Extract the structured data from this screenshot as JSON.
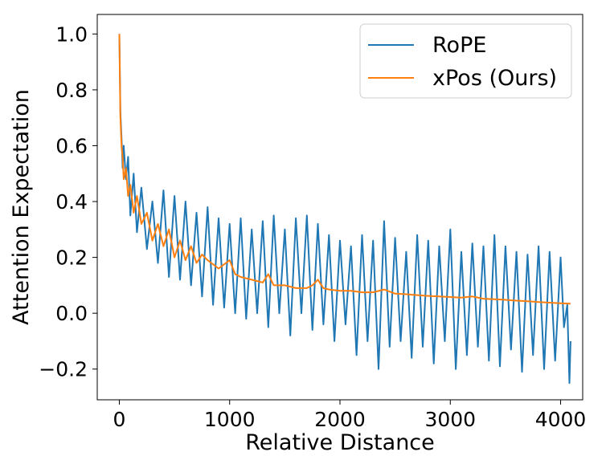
{
  "chart_data": {
    "type": "line",
    "title": "",
    "xlabel": "Relative Distance",
    "ylabel": "Attention Expectation",
    "xlim": [
      -200,
      4200
    ],
    "ylim": [
      -0.31,
      1.07
    ],
    "xticks": [
      0,
      1000,
      2000,
      3000,
      4000
    ],
    "xtick_labels": [
      "0",
      "1000",
      "2000",
      "3000",
      "4000"
    ],
    "yticks": [
      -0.2,
      0.0,
      0.2,
      0.4,
      0.6,
      0.8,
      1.0
    ],
    "ytick_labels": [
      "−0.2",
      "0.0",
      "0.2",
      "0.4",
      "0.6",
      "0.8",
      "1.0"
    ],
    "grid": false,
    "legend_position": "top-right",
    "series": [
      {
        "name": "RoPE",
        "color": "#1f77b4",
        "x": [
          0,
          10,
          20,
          30,
          40,
          60,
          80,
          100,
          130,
          160,
          200,
          250,
          300,
          350,
          400,
          450,
          500,
          550,
          600,
          650,
          700,
          750,
          800,
          850,
          900,
          950,
          1000,
          1050,
          1100,
          1150,
          1200,
          1250,
          1300,
          1350,
          1400,
          1450,
          1500,
          1550,
          1600,
          1650,
          1700,
          1750,
          1800,
          1850,
          1900,
          1950,
          2000,
          2050,
          2100,
          2150,
          2200,
          2250,
          2300,
          2350,
          2400,
          2450,
          2500,
          2550,
          2600,
          2650,
          2700,
          2750,
          2800,
          2850,
          2900,
          2950,
          3000,
          3050,
          3100,
          3150,
          3200,
          3250,
          3300,
          3350,
          3400,
          3450,
          3500,
          3550,
          3600,
          3650,
          3700,
          3750,
          3800,
          3850,
          3900,
          3950,
          4000,
          4030,
          4060,
          4080,
          4090
        ],
        "y": [
          1.0,
          0.72,
          0.63,
          0.52,
          0.6,
          0.48,
          0.56,
          0.35,
          0.5,
          0.29,
          0.45,
          0.23,
          0.4,
          0.18,
          0.44,
          0.13,
          0.42,
          0.12,
          0.4,
          0.1,
          0.36,
          0.06,
          0.38,
          0.03,
          0.34,
          0.02,
          0.32,
          0.0,
          0.34,
          -0.02,
          0.3,
          0.0,
          0.33,
          -0.05,
          0.35,
          0.0,
          0.3,
          -0.08,
          0.34,
          0.0,
          0.35,
          -0.06,
          0.32,
          -0.04,
          0.28,
          -0.1,
          0.26,
          -0.04,
          0.24,
          -0.15,
          0.28,
          -0.1,
          0.26,
          -0.2,
          0.33,
          -0.12,
          0.27,
          -0.1,
          0.22,
          -0.16,
          0.28,
          -0.12,
          0.26,
          -0.18,
          0.24,
          -0.1,
          0.3,
          -0.2,
          0.22,
          -0.15,
          0.25,
          -0.12,
          0.24,
          -0.17,
          0.28,
          -0.19,
          0.24,
          -0.13,
          0.22,
          -0.21,
          0.21,
          -0.15,
          0.24,
          -0.2,
          0.22,
          -0.17,
          0.2,
          -0.05,
          0.03,
          -0.25,
          -0.1
        ]
      },
      {
        "name": "xPos (Ours)",
        "color": "#ff7f0e",
        "x": [
          0,
          10,
          20,
          30,
          40,
          60,
          80,
          100,
          130,
          160,
          200,
          250,
          300,
          350,
          400,
          450,
          500,
          550,
          600,
          650,
          700,
          750,
          800,
          900,
          1000,
          1050,
          1100,
          1200,
          1300,
          1350,
          1400,
          1500,
          1600,
          1700,
          1750,
          1800,
          1850,
          1900,
          2000,
          2100,
          2200,
          2300,
          2400,
          2500,
          2600,
          2700,
          2800,
          2900,
          3000,
          3100,
          3200,
          3300,
          3400,
          3500,
          3600,
          3700,
          3800,
          3900,
          4000,
          4090
        ],
        "y": [
          1.0,
          0.7,
          0.6,
          0.56,
          0.48,
          0.52,
          0.42,
          0.46,
          0.36,
          0.42,
          0.32,
          0.36,
          0.26,
          0.32,
          0.24,
          0.3,
          0.2,
          0.26,
          0.19,
          0.24,
          0.18,
          0.21,
          0.19,
          0.16,
          0.19,
          0.14,
          0.13,
          0.12,
          0.11,
          0.14,
          0.1,
          0.1,
          0.09,
          0.09,
          0.1,
          0.12,
          0.09,
          0.085,
          0.08,
          0.08,
          0.075,
          0.075,
          0.085,
          0.07,
          0.068,
          0.065,
          0.062,
          0.06,
          0.058,
          0.056,
          0.06,
          0.052,
          0.05,
          0.048,
          0.045,
          0.043,
          0.04,
          0.038,
          0.036,
          0.034
        ]
      }
    ]
  }
}
